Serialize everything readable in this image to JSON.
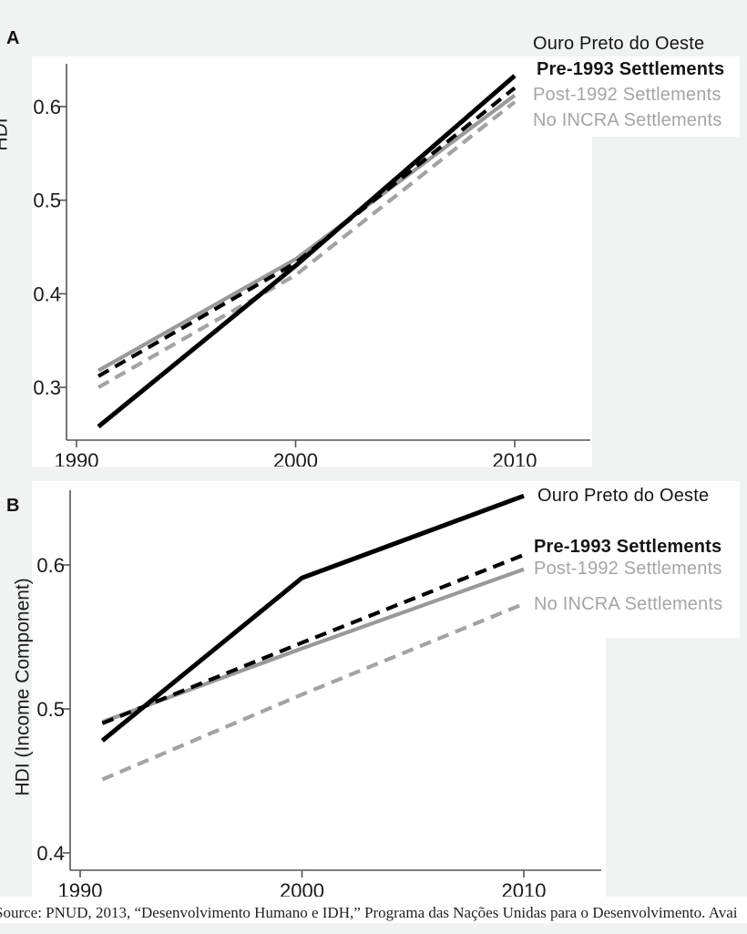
{
  "page": {
    "background_color": "#f1f2f2",
    "source_note": "Source: PNUD, 2013, “Desenvolvimento Humano e IDH,” Programa das Nações Unidas para o Desenvolvimento. Avai"
  },
  "panels": {
    "a_label": "A",
    "b_label": "B"
  },
  "colors": {
    "black_line": "#000000",
    "gray_solid_line": "#999999",
    "gray_dashed_line": "#a3a3a3",
    "axis": "#555555"
  },
  "chart_data": [
    {
      "panel": "A",
      "type": "line",
      "title": "",
      "xlabel": "",
      "ylabel": "HDI",
      "x": [
        1991,
        2000,
        2010
      ],
      "x_ticks": [
        1990,
        2000,
        2010
      ],
      "y_ticks": [
        0.3,
        0.4,
        0.5,
        0.6
      ],
      "xlim": [
        1989.4,
        2013.5
      ],
      "ylim": [
        0.24,
        0.65
      ],
      "grid": false,
      "legend_position": "top-right",
      "series": [
        {
          "name": "Ouro Preto do Oeste",
          "color": "#000000",
          "dash": "solid",
          "values": [
            0.258,
            0.43,
            0.633
          ]
        },
        {
          "name": "Pre-1993 Settlements",
          "color": "#000000",
          "dash": "dashed",
          "values": [
            0.312,
            0.433,
            0.62
          ]
        },
        {
          "name": "Post-1992 Settlements",
          "color": "#999999",
          "dash": "solid",
          "values": [
            0.318,
            0.437,
            0.612
          ]
        },
        {
          "name": "No INCRA Settlements",
          "color": "#a3a3a3",
          "dash": "dashed",
          "values": [
            0.3,
            0.42,
            0.605
          ]
        }
      ]
    },
    {
      "panel": "B",
      "type": "line",
      "title": "",
      "xlabel": "",
      "ylabel": "HDI (Income Component)",
      "x": [
        1991,
        2000,
        2010
      ],
      "x_ticks": [
        1990,
        2000,
        2010
      ],
      "y_ticks": [
        0.4,
        0.5,
        0.6
      ],
      "xlim": [
        1989.4,
        2013.5
      ],
      "ylim": [
        0.39,
        0.66
      ],
      "grid": false,
      "legend_position": "right",
      "series": [
        {
          "name": "Ouro Preto do Oeste",
          "color": "#000000",
          "dash": "solid",
          "values": [
            0.478,
            0.591,
            0.648
          ]
        },
        {
          "name": "Pre-1993 Settlements",
          "color": "#000000",
          "dash": "dashed",
          "values": [
            0.49,
            0.546,
            0.607
          ]
        },
        {
          "name": "Post-1992 Settlements",
          "color": "#999999",
          "dash": "solid",
          "values": [
            0.491,
            0.542,
            0.597
          ]
        },
        {
          "name": "No INCRA Settlements",
          "color": "#a3a3a3",
          "dash": "dashed",
          "values": [
            0.451,
            0.51,
            0.573
          ]
        }
      ]
    }
  ]
}
